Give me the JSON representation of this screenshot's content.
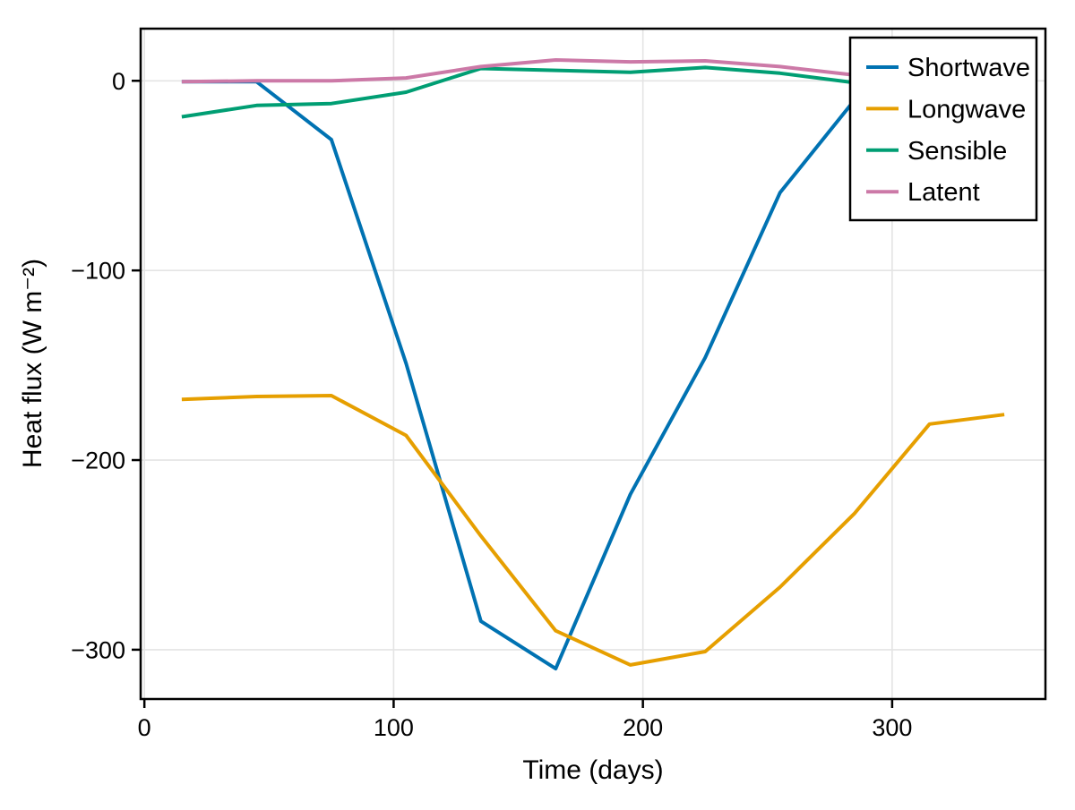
{
  "chart_data": {
    "type": "line",
    "title": "",
    "xlabel": "Time (days)",
    "ylabel": "Heat flux (W m⁻²)",
    "xlim": [
      -1.5,
      361.5
    ],
    "ylim": [
      -326,
      27.5
    ],
    "xticks": [
      0,
      100,
      200,
      300
    ],
    "yticks": [
      0,
      -100,
      -200,
      -300
    ],
    "grid": true,
    "grid_color": "#e4e4e4",
    "frame_color": "#000000",
    "text_color": "#000000",
    "background_color": "#ffffff",
    "legend_position": "top-right",
    "series": [
      {
        "name": "Shortwave",
        "color": "#0072B2",
        "x": [
          15,
          45,
          75,
          105,
          135,
          165,
          195,
          225,
          255,
          285
        ],
        "y": [
          -0.5,
          -0.5,
          -31,
          -149,
          -285,
          -310,
          -218,
          -146,
          -59,
          -10
        ]
      },
      {
        "name": "Longwave",
        "color": "#E69F00",
        "x": [
          15,
          45,
          75,
          105,
          135,
          165,
          195,
          225,
          255,
          285,
          315,
          345
        ],
        "y": [
          -168,
          -166.5,
          -166,
          -187,
          -240,
          -290,
          -308,
          -301,
          -267,
          -228,
          -181,
          -176
        ]
      },
      {
        "name": "Sensible",
        "color": "#009E73",
        "x": [
          15,
          45,
          75,
          105,
          135,
          165,
          195,
          225,
          255,
          285
        ],
        "y": [
          -19,
          -13,
          -12,
          -6,
          6.5,
          5.5,
          4.5,
          7,
          4,
          -1
        ]
      },
      {
        "name": "Latent",
        "color": "#CC79A7",
        "x": [
          15,
          45,
          75,
          105,
          135,
          165,
          195,
          225,
          255,
          285
        ],
        "y": [
          -0.5,
          0,
          0,
          1.5,
          7.5,
          11,
          10,
          10.5,
          7.5,
          3
        ]
      }
    ]
  }
}
